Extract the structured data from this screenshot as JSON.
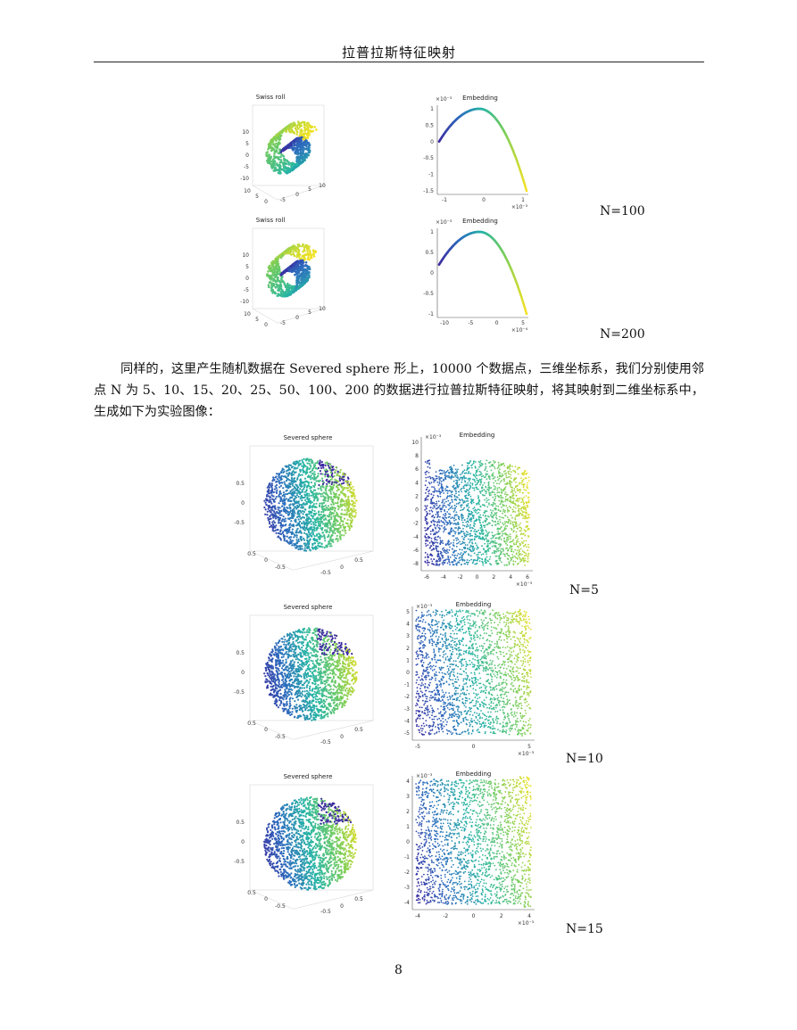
{
  "header": {
    "title": "拉普拉斯特征映射"
  },
  "swiss": {
    "left_title": "Swiss roll",
    "right_title": "Embedding",
    "rows": [
      {
        "label": "N=100",
        "emb_exp": "×10⁻³",
        "emb_xexp": "×10⁻³",
        "emb_yticks": [
          "1",
          "0.5",
          "0",
          "-0.5",
          "-1",
          "-1.5"
        ],
        "emb_xticks": [
          "-1",
          "0",
          "1"
        ],
        "left_yticks": [
          "10",
          "5",
          "0",
          "-5",
          "-10"
        ],
        "left_xticks": [
          "10",
          "5",
          "0",
          "-5",
          "0",
          "5",
          "10"
        ]
      },
      {
        "label": "N=200",
        "emb_exp": "×10⁻³",
        "emb_xexp": "×10⁻⁴",
        "emb_yticks": [
          "1",
          "0.5",
          "0",
          "-0.5",
          "-1"
        ],
        "emb_xticks": [
          "-10",
          "-5",
          "0",
          "5"
        ],
        "left_yticks": [
          "10",
          "5",
          "0",
          "-5",
          "-10"
        ],
        "left_xticks": [
          "10",
          "5",
          "0",
          "-5",
          "0",
          "5",
          "10"
        ]
      }
    ]
  },
  "paragraph": {
    "text": "同样的，这里产生随机数据在 Severed sphere 形上，10000 个数据点，三维坐标系，我们分别使用邻点 N 为 5、10、15、20、25、50、100、200 的数据进行拉普拉斯特征映射，将其映射到二维坐标系中，生成如下为实验图像："
  },
  "sphere": {
    "left_title": "Severed sphere",
    "right_title": "Embedding",
    "rows": [
      {
        "label": "N=5",
        "emb_exp": "×10⁻³",
        "emb_xexp": "×10⁻³",
        "emb_yticks": [
          "10",
          "8",
          "6",
          "4",
          "2",
          "0",
          "-2",
          "-4",
          "-6",
          "-8"
        ],
        "emb_xticks": [
          "-6",
          "-4",
          "-2",
          "0",
          "2",
          "4",
          "6"
        ],
        "left_yticks": [
          "0.5",
          "0",
          "-0.5"
        ],
        "left_xticks": [
          "0.5",
          "0",
          "-0.5",
          "-0.5",
          "0",
          "0.5"
        ]
      },
      {
        "label": "N=10",
        "emb_exp": "×10⁻³",
        "emb_xexp": "×10⁻³",
        "emb_yticks": [
          "5",
          "4",
          "3",
          "2",
          "1",
          "0",
          "-1",
          "-2",
          "-3",
          "-4",
          "-5"
        ],
        "emb_xticks": [
          "-5",
          "0",
          "5"
        ],
        "left_yticks": [
          "0.5",
          "0",
          "-0.5"
        ],
        "left_xticks": [
          "0.5",
          "0",
          "-0.5",
          "-0.5",
          "0",
          "0.5"
        ]
      },
      {
        "label": "N=15",
        "emb_exp": "×10⁻³",
        "emb_xexp": "×10⁻³",
        "emb_yticks": [
          "4",
          "3",
          "2",
          "1",
          "0",
          "-1",
          "-2",
          "-3",
          "-4"
        ],
        "emb_xticks": [
          "-4",
          "-2",
          "0",
          "2",
          "4"
        ],
        "left_yticks": [
          "0.5",
          "0",
          "-0.5"
        ],
        "left_xticks": [
          "0.5",
          "0",
          "-0.5",
          "-0.5",
          "0",
          "0.5"
        ]
      }
    ]
  },
  "page_number": "8",
  "colors": {
    "viridis_start": "#3b2aa0",
    "viridis_mid": "#26b5a5",
    "viridis_end": "#f5e220"
  }
}
